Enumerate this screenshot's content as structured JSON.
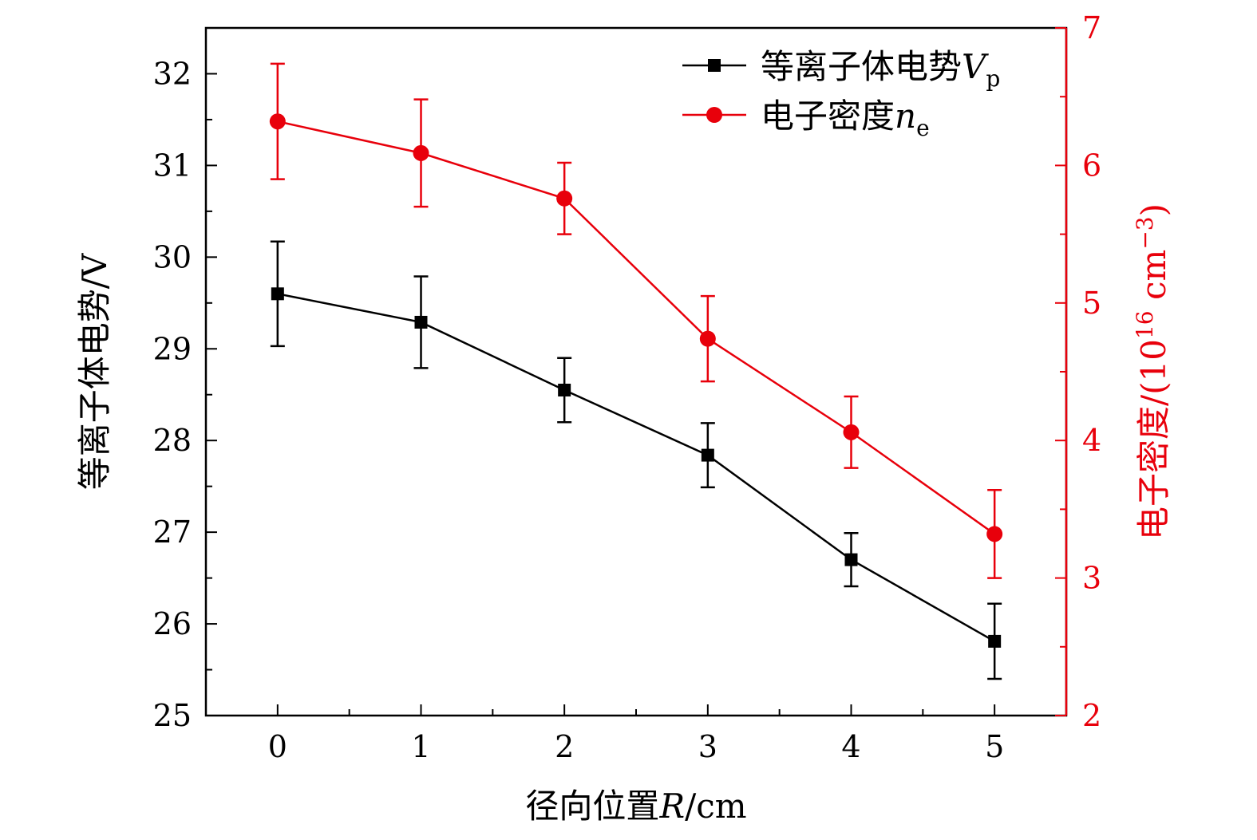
{
  "chart_data": {
    "type": "line",
    "x": [
      0,
      1,
      2,
      3,
      4,
      5
    ],
    "xlabel": "径向位置R/cm",
    "xlabel_parts": {
      "prefix": "径向位置",
      "var": "R",
      "unit": "/cm"
    },
    "xlim": [
      -0.5,
      5.5
    ],
    "x_ticks": [
      "0",
      "1",
      "2",
      "3",
      "4",
      "5"
    ],
    "ylabel_left": "等离子体电势/V",
    "ylim_left": [
      25,
      32.5
    ],
    "y_ticks_left": [
      "25",
      "26",
      "27",
      "28",
      "29",
      "30",
      "31",
      "32"
    ],
    "ylabel_right": "电子密度/(10^16 cm^-3)",
    "ylabel_right_parts": {
      "prefix": "电子密度/(10",
      "exp1": "16",
      "mid": " cm",
      "exp2": "−3",
      "end": ")"
    },
    "ylim_right": [
      2,
      7
    ],
    "y_ticks_right": [
      "2",
      "3",
      "4",
      "5",
      "6",
      "7"
    ],
    "legend_position": "top-right",
    "series": [
      {
        "name": "等离子体电势Vp",
        "legend_prefix": "等离子体电势",
        "legend_var": "V",
        "legend_sub": "p",
        "axis": "left",
        "color": "#000000",
        "marker": "square",
        "values": [
          29.6,
          29.29,
          28.55,
          27.84,
          26.7,
          25.81
        ],
        "errors": [
          0.57,
          0.5,
          0.35,
          0.35,
          0.29,
          0.41
        ]
      },
      {
        "name": "电子密度ne",
        "legend_prefix": "电子密度",
        "legend_var": "n",
        "legend_sub": "e",
        "axis": "right",
        "color": "#e8000b",
        "marker": "circle",
        "values": [
          6.32,
          6.09,
          5.76,
          4.74,
          4.06,
          3.32
        ],
        "errors": [
          0.42,
          0.39,
          0.26,
          0.31,
          0.26,
          0.32
        ]
      }
    ]
  }
}
